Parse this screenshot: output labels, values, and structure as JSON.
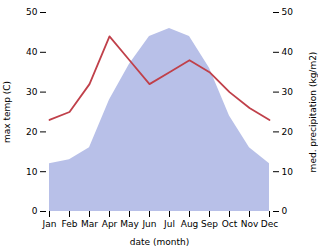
{
  "chart_data": {
    "type": "line",
    "x_label": "date (month)",
    "y_label": "max temp (C)",
    "y2_label": "med. precipitation (kg/m2)",
    "categories": [
      "Jan",
      "Feb",
      "Mar",
      "Apr",
      "May",
      "Jun",
      "Jul",
      "Aug",
      "Sep",
      "Oct",
      "Nov",
      "Dec"
    ],
    "series": [
      {
        "type": "area",
        "axis": "y2",
        "color": "#b8c0e8",
        "values": [
          12,
          13,
          16,
          28,
          37,
          44,
          46,
          44,
          36,
          24,
          16,
          12
        ]
      },
      {
        "type": "line",
        "color": "#c0404a",
        "values": [
          23,
          25,
          32,
          44,
          38,
          32,
          35,
          38,
          35,
          30,
          26,
          23
        ]
      }
    ],
    "ylim": [
      0,
      50
    ],
    "yticks": [
      0,
      10,
      20,
      30,
      40,
      50
    ],
    "y2lim": [
      0,
      50
    ],
    "y2ticks": [
      0,
      10,
      20,
      30,
      40,
      50
    ],
    "grid": false
  }
}
